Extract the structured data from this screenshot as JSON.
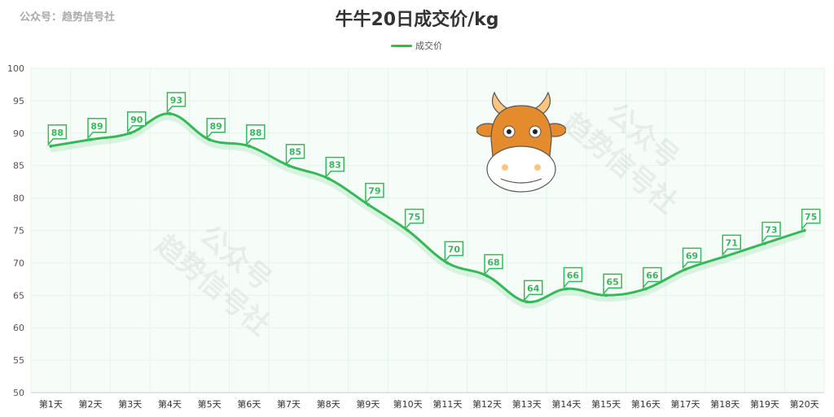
{
  "watermark": "公众号：趋势信号社",
  "watermark_lines": [
    "公众号",
    "趋势信号社"
  ],
  "chart_data": {
    "type": "line",
    "title": "牛牛20日成交价/kg",
    "legend": [
      "成交价"
    ],
    "legend_position": "top-center",
    "categories": [
      "第1天",
      "第2天",
      "第3天",
      "第4天",
      "第5天",
      "第6天",
      "第7天",
      "第8天",
      "第9天",
      "第10天",
      "第11天",
      "第12天",
      "第13天",
      "第14天",
      "第15天",
      "第16天",
      "第17天",
      "第18天",
      "第19天",
      "第20天"
    ],
    "series": [
      {
        "name": "成交价",
        "values": [
          88,
          89,
          90,
          93,
          89,
          88,
          85,
          83,
          79,
          75,
          70,
          68,
          64,
          66,
          65,
          66,
          69,
          71,
          73,
          75
        ]
      }
    ],
    "ylim": [
      50,
      100
    ],
    "yticks": [
      50,
      55,
      60,
      65,
      70,
      75,
      80,
      85,
      90,
      95,
      100
    ],
    "grid": true,
    "color": "#35b958"
  }
}
